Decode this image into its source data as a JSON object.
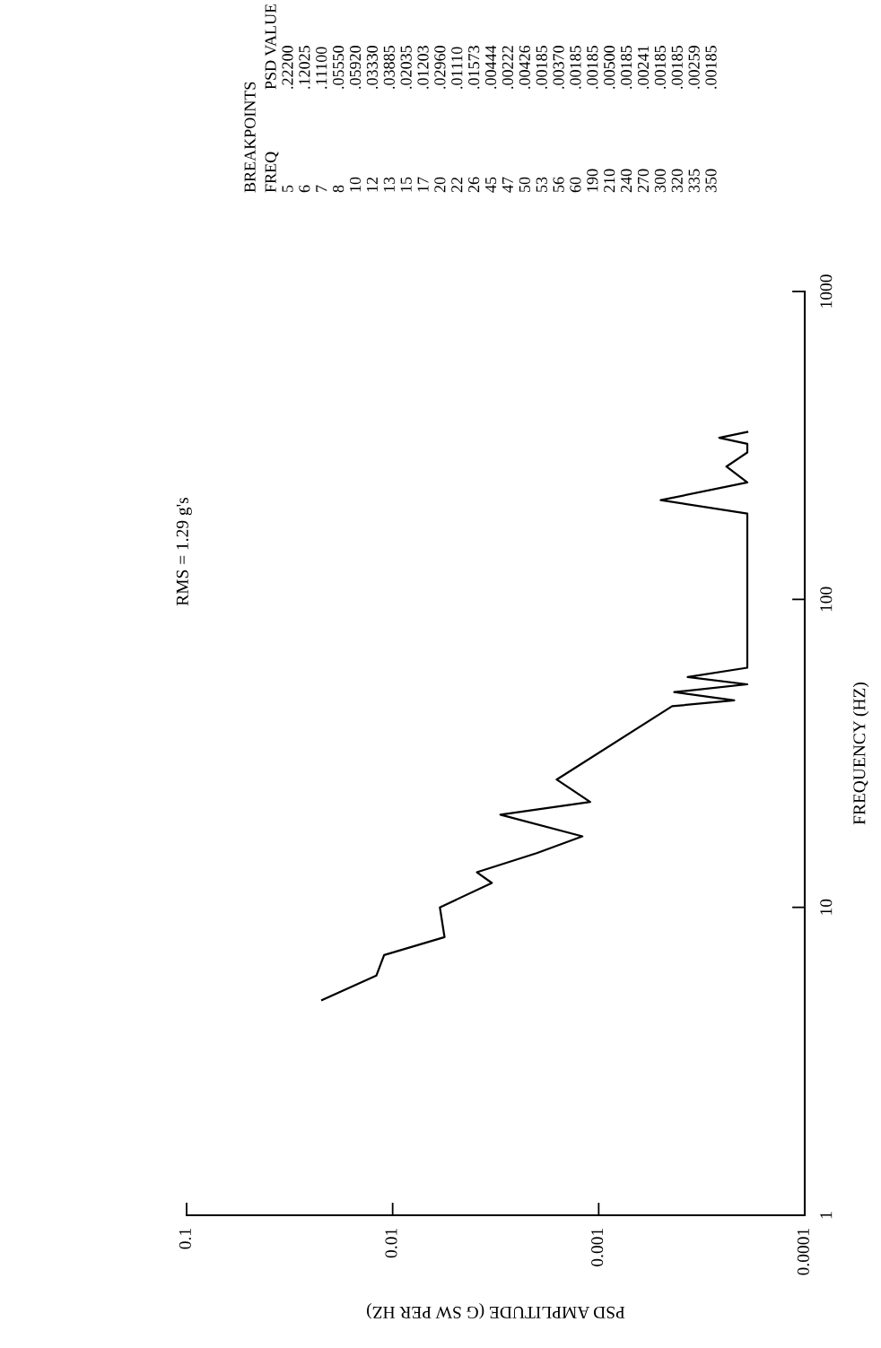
{
  "chart_data": {
    "type": "line",
    "xlabel": "PSD AMPLITUDE (G SW PER HZ)",
    "ylabel": "FREQUENCY (HZ)",
    "log": "xy",
    "series": [
      {
        "color": "#000000",
        "x": [
          0.022,
          0.012,
          0.011,
          0.0056,
          0.0059,
          0.0033,
          0.0039,
          0.002,
          0.0012,
          0.003,
          0.0011,
          0.0016,
          0.00044,
          0.00022,
          0.00043,
          0.00019,
          0.00037,
          0.00019,
          0.00019,
          0.0005,
          0.00019,
          0.00024,
          0.00019,
          0.00019,
          0.00026,
          0.00019
        ],
        "values": [
          5,
          6,
          7,
          8,
          10,
          12,
          13,
          15,
          17,
          20,
          22,
          26,
          45,
          47,
          50,
          53,
          56,
          60,
          190,
          210,
          240,
          270,
          300,
          320,
          335,
          350
        ]
      }
    ],
    "xlim": [
      0.1,
      0.0001
    ],
    "xticks": [
      0.1,
      0.01,
      0.001,
      0.0001
    ],
    "ylim": [
      1,
      1000
    ],
    "yticks": [
      1,
      10,
      100,
      1000
    ],
    "annotations": [
      "RMS = 1.29 g's",
      "BREAKPOINTS",
      "FREQ\n5\n6\n7\n8\n10\n12\n13\n15\n17\n20\n22\n26\n45\n47\n50\n53\n56\n60\n190\n210\n240\n270\n300\n320\n335\n350",
      "PSD VALUE\n.22200\n.12025\n.11100\n.05550\n.05920\n.03330\n.03885\n.02035\n.01203\n.02960\n.01110\n.01573\n.00444\n.00222\n.00426\n.00185\n.00370\n.00185\n.00185\n.00500\n.00185\n.00241\n.00185\n.00185\n.00259\n.00185"
    ]
  }
}
